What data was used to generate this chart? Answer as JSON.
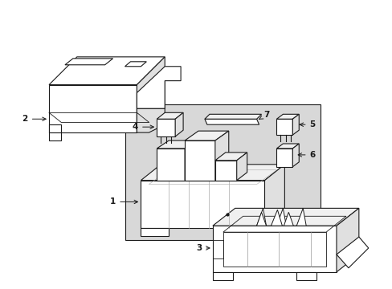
{
  "bg_color": "#ffffff",
  "line_color": "#1a1a1a",
  "gray_fill": "#d8d8d8",
  "light_fill": "#f0f0f0",
  "side_fill": "#e0e0e0",
  "fig_width": 4.89,
  "fig_height": 3.6,
  "dpi": 100
}
